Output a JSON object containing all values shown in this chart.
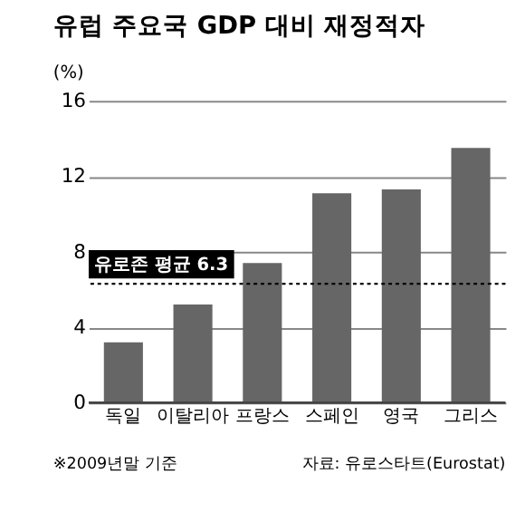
{
  "chart_data": {
    "type": "bar",
    "title": "유럽 주요국 GDP 대비 재정적자",
    "ylabel": "(%)",
    "categories": [
      "독일",
      "이탈리아",
      "프랑스",
      "스페인",
      "영국",
      "그리스"
    ],
    "values": [
      3.2,
      5.2,
      7.4,
      11.1,
      11.3,
      13.5
    ],
    "color": "#666666",
    "ylim": [
      0,
      16
    ],
    "yticks": [
      0,
      4,
      8,
      12,
      16
    ],
    "grid": "y",
    "ref_lines": [
      {
        "axis": "y",
        "value": 6.3,
        "label": "유로존 평균 6.3",
        "line_style": "dotted",
        "color": "#000000"
      }
    ],
    "annotations": [
      "※2009년말 기준",
      "자료: 유로스타트(Eurostat)"
    ]
  }
}
